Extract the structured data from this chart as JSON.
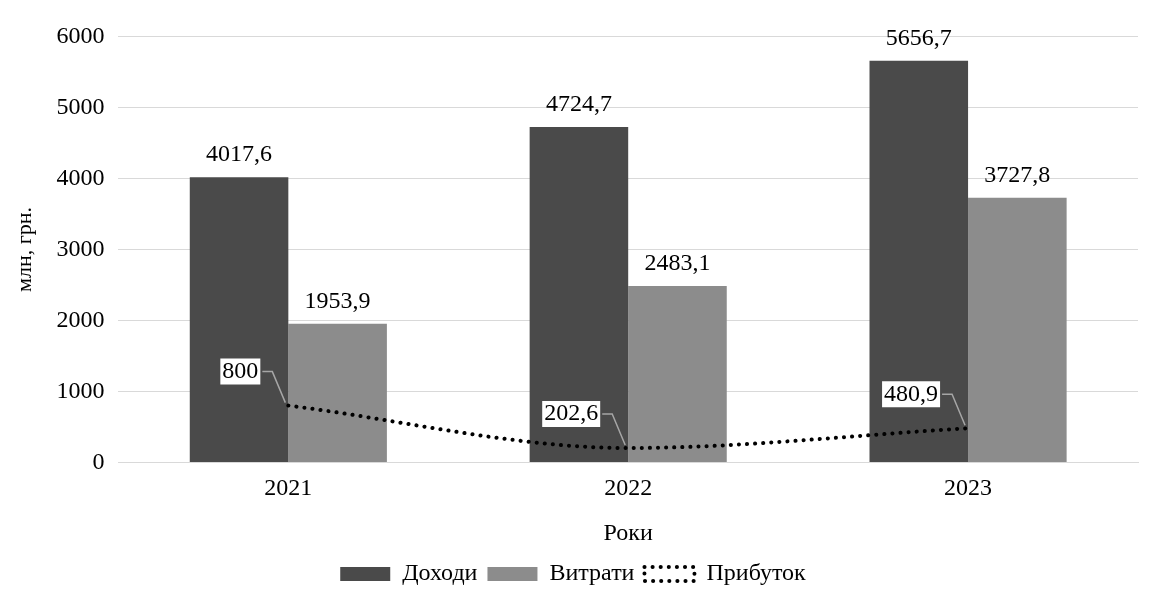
{
  "chart_data": {
    "type": "bar",
    "xlabel": "Роки",
    "ylabel": "млн, грн.",
    "categories": [
      "2021",
      "2022",
      "2023"
    ],
    "series": [
      {
        "name": "Доходи",
        "color": "#4a4a4a",
        "values": [
          4017.6,
          4724.7,
          5656.7
        ],
        "value_labels": [
          "4017,6",
          "4724,7",
          "5656,7"
        ]
      },
      {
        "name": "Витрати",
        "color": "#8c8c8c",
        "values": [
          1953.9,
          2483.1,
          3727.8
        ],
        "value_labels": [
          "1953,9",
          "2483,1",
          "3727,8"
        ]
      },
      {
        "name": "Прибуток",
        "type": "line",
        "color": "#000000",
        "line_style": "dotted",
        "values": [
          800,
          202.6,
          480.9
        ],
        "value_labels": [
          "800",
          "202,6",
          "480,9"
        ]
      }
    ],
    "ylim": [
      0,
      6000
    ],
    "yticks": [
      0,
      1000,
      2000,
      3000,
      4000,
      5000,
      6000
    ],
    "grid": "y",
    "legend": "bottom"
  }
}
